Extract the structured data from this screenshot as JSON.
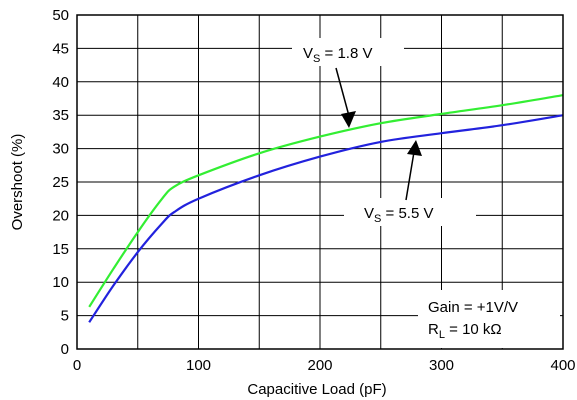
{
  "chart_data": {
    "type": "line",
    "xlabel": "Capacitive Load (pF)",
    "ylabel": "Overshoot (%)",
    "xlim": [
      0,
      400
    ],
    "ylim": [
      0,
      50
    ],
    "x_ticks": [
      0,
      100,
      200,
      300,
      400
    ],
    "y_ticks": [
      0,
      5,
      10,
      15,
      20,
      25,
      30,
      35,
      40,
      45,
      50
    ],
    "x_grid_step": 50,
    "grid": true,
    "series": [
      {
        "name": "V_S = 1.8 V",
        "color": "#33ee33",
        "x": [
          10,
          30,
          50,
          70,
          80,
          100,
          150,
          200,
          250,
          300,
          350,
          400
        ],
        "y": [
          6.3,
          12,
          17.5,
          22.5,
          24.3,
          26,
          29.3,
          31.8,
          33.8,
          35.2,
          36.5,
          38
        ]
      },
      {
        "name": "V_S = 5.5 V",
        "color": "#2222dd",
        "x": [
          10,
          30,
          50,
          70,
          80,
          100,
          150,
          200,
          250,
          300,
          350,
          400
        ],
        "y": [
          4,
          9.5,
          14.5,
          18.8,
          20.5,
          22.5,
          26,
          28.8,
          31,
          32.3,
          33.5,
          35
        ]
      }
    ],
    "annotations": {
      "vs18": {
        "prefix": "V",
        "sub": "S",
        "suffix": " = 1.8 V"
      },
      "vs55": {
        "prefix": "V",
        "sub": "S",
        "suffix": " = 5.5 V"
      },
      "gain": "Gain = +1V/V",
      "rl": {
        "prefix": "R",
        "sub": "L",
        "suffix": " = 10 kΩ"
      }
    }
  }
}
